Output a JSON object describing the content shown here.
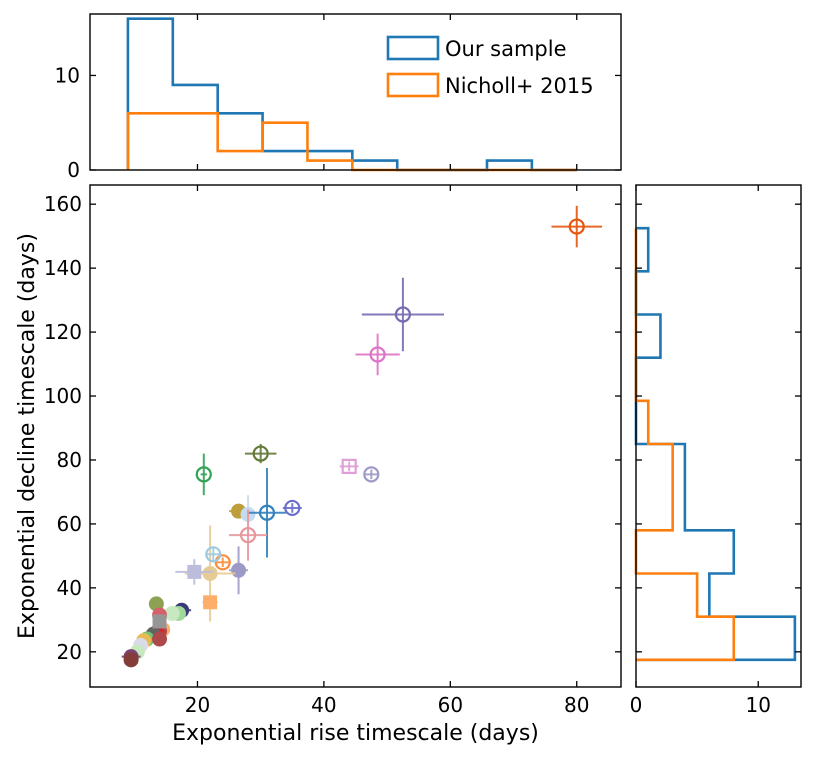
{
  "chart_data": [
    {
      "id": "top-histogram",
      "type": "histogram",
      "title": "",
      "xlabel": "",
      "ylabel": "",
      "xlim": [
        3,
        87
      ],
      "ylim": [
        0,
        16.5
      ],
      "yticks": [
        0,
        10
      ],
      "legend": {
        "location": "top-right",
        "entries": [
          "Our sample",
          "Nicholl+ 2015"
        ]
      },
      "series": [
        {
          "name": "Our sample",
          "color": "#1f77b4",
          "edges": [
            9,
            16.1,
            23.2,
            30.3,
            37.4,
            44.5,
            51.6,
            58.7,
            65.8,
            72.9,
            80
          ],
          "counts": [
            16,
            9,
            6,
            2,
            2,
            1,
            0,
            0,
            1,
            0
          ]
        },
        {
          "name": "Nicholl+ 2015",
          "color": "#ff7f0e",
          "edges": [
            9,
            16.1,
            23.2,
            30.3,
            37.4,
            44.5,
            51.6,
            58.7,
            65.8,
            72.9,
            80
          ],
          "counts": [
            6,
            6,
            2,
            5,
            1,
            0,
            0,
            0,
            0,
            0
          ]
        }
      ]
    },
    {
      "id": "main-scatter",
      "type": "scatter",
      "title": "",
      "xlabel": "Exponential rise timescale (days)",
      "ylabel": "Exponential decline timescale (days)",
      "xlim": [
        3,
        87
      ],
      "ylim": [
        9,
        166
      ],
      "xticks": [
        20,
        40,
        60,
        80
      ],
      "yticks": [
        20,
        40,
        60,
        80,
        100,
        120,
        140,
        160
      ],
      "open_circles": [
        {
          "x": 80,
          "y": 153,
          "xerr": 4,
          "yerr": 6.5,
          "color": "#e6550d"
        },
        {
          "x": 52.5,
          "y": 125.5,
          "xerr": 6.5,
          "yerr": 11.5,
          "color": "#756bb1"
        },
        {
          "x": 48.5,
          "y": 113,
          "xerr": 3.5,
          "yerr": 6.5,
          "color": "#dd72c7"
        },
        {
          "x": 30,
          "y": 82,
          "xerr": 2.5,
          "yerr": 3,
          "color": "#637939"
        },
        {
          "x": 21,
          "y": 75.5,
          "xerr": 0.5,
          "yerr": 6.5,
          "color": "#31a354"
        },
        {
          "x": 47.5,
          "y": 75.5,
          "xerr": 1,
          "yerr": 1.5,
          "color": "#9e9ac8"
        },
        {
          "x": 35,
          "y": 65,
          "xerr": 1.5,
          "yerr": 1.5,
          "color": "#6b6ecf"
        },
        {
          "x": 31,
          "y": 63.5,
          "xerr": 3,
          "yerr": 14,
          "color": "#3182bd"
        },
        {
          "x": 28,
          "y": 56.5,
          "xerr": 3,
          "yerr": 8,
          "color": "#e7969c"
        },
        {
          "x": 24,
          "y": 48,
          "xerr": 1,
          "yerr": 1.5,
          "color": "#fd8d3c"
        },
        {
          "x": 22.5,
          "y": 50.5,
          "xerr": 1.2,
          "yerr": 2,
          "color": "#9ecae1"
        }
      ],
      "open_squares": [
        {
          "x": 44,
          "y": 78,
          "xerr": 1.5,
          "yerr": 1.5,
          "color": "#de9ed6"
        }
      ],
      "filled_circles": [
        {
          "x": 26.5,
          "y": 64,
          "xerr": 1.5,
          "yerr": 1.5,
          "color": "#bd9e39"
        },
        {
          "x": 28,
          "y": 63,
          "xerr": 0.7,
          "yerr": 6,
          "color": "#c6dbef"
        },
        {
          "x": 26.5,
          "y": 45.5,
          "xerr": 1.5,
          "yerr": 7.5,
          "color": "#9e9ac8"
        },
        {
          "x": 22,
          "y": 44.5,
          "xerr": 4,
          "yerr": 15,
          "color": "#e7cb94"
        },
        {
          "x": 17.5,
          "y": 33,
          "xerr": 1.5,
          "yerr": 1.5,
          "color": "#393b79"
        },
        {
          "x": 17,
          "y": 32,
          "xerr": 1,
          "yerr": 1,
          "color": "#a1d99b"
        },
        {
          "x": 16,
          "y": 32,
          "xerr": 1,
          "yerr": 1,
          "color": "#c7e9c0"
        },
        {
          "x": 13.5,
          "y": 35,
          "xerr": 0.8,
          "yerr": 1,
          "color": "#8ca252"
        },
        {
          "x": 14,
          "y": 31.5,
          "xerr": 1,
          "yerr": 1,
          "color": "#d6616b"
        },
        {
          "x": 14.5,
          "y": 27,
          "xerr": 1,
          "yerr": 1,
          "color": "#fdae6b"
        },
        {
          "x": 14,
          "y": 26.5,
          "xerr": 1,
          "yerr": 1,
          "color": "#ad494a"
        },
        {
          "x": 13.5,
          "y": 26,
          "xerr": 1,
          "yerr": 1,
          "color": "#d62728"
        },
        {
          "x": 13,
          "y": 25.5,
          "xerr": 1,
          "yerr": 1.5,
          "color": "#636363"
        },
        {
          "x": 12,
          "y": 24,
          "xerr": 1,
          "yerr": 1,
          "color": "#74c476"
        },
        {
          "x": 11.5,
          "y": 23.5,
          "xerr": 1,
          "yerr": 1,
          "color": "#e7ba52"
        },
        {
          "x": 14,
          "y": 24,
          "xerr": 1,
          "yerr": 1,
          "color": "#ad494a"
        },
        {
          "x": 11,
          "y": 22,
          "xerr": 1,
          "yerr": 1,
          "color": "#dadaeb"
        },
        {
          "x": 10.5,
          "y": 20,
          "xerr": 1,
          "yerr": 1,
          "color": "#c7e9c0"
        },
        {
          "x": 9.5,
          "y": 18.5,
          "xerr": 1.5,
          "yerr": 0.8,
          "color": "#7b4173"
        },
        {
          "x": 9.5,
          "y": 17.5,
          "xerr": 1,
          "yerr": 1,
          "color": "#843c39"
        }
      ],
      "filled_squares": [
        {
          "x": 19.5,
          "y": 45,
          "xerr": 3,
          "yerr": 4,
          "color": "#bcbddc"
        },
        {
          "x": 22,
          "y": 35.5,
          "xerr": 1.2,
          "yerr": 1.5,
          "color": "#fdae6b"
        },
        {
          "x": 14,
          "y": 29.5,
          "xerr": 1,
          "yerr": 1,
          "color": "#969696"
        }
      ]
    },
    {
      "id": "right-histogram",
      "type": "histogram",
      "orientation": "horizontal",
      "title": "",
      "xlabel": "",
      "ylabel": "",
      "xlim": [
        0,
        13.5
      ],
      "ylim": [
        9,
        166
      ],
      "xticks": [
        0,
        10
      ],
      "series": [
        {
          "name": "Our sample",
          "color": "#1f77b4",
          "edges": [
            17.5,
            31,
            44.5,
            58,
            71.5,
            85,
            98.5,
            112,
            125.5,
            139,
            152.5
          ],
          "counts": [
            13,
            6,
            8,
            4,
            4,
            0,
            0,
            2,
            0,
            1
          ]
        },
        {
          "name": "Nicholl+ 2015",
          "color": "#ff7f0e",
          "edges": [
            17.5,
            31,
            44.5,
            58,
            71.5,
            85,
            98.5,
            112,
            125.5,
            139,
            152.5
          ],
          "counts": [
            8,
            5,
            0,
            3,
            3,
            1,
            0,
            0,
            0,
            0
          ]
        }
      ]
    }
  ]
}
